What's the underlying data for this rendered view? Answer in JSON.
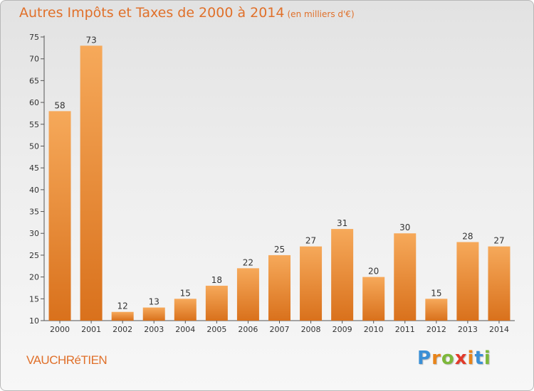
{
  "header": {
    "title": "Autres Impôts et Taxes de 2000 à 2014",
    "unit": "(en milliers d'€)"
  },
  "footer": {
    "commune": "VAUCHRéTIEN",
    "logo_letters": [
      "P",
      "r",
      "o",
      "x",
      "i",
      "t",
      "i"
    ],
    "logo_colors": [
      "#3a8fd6",
      "#e8841a",
      "#7db83a",
      "#e23a2a",
      "#e8841a",
      "#3a8fd6",
      "#7db83a"
    ]
  },
  "colors": {
    "bar_light": "#f6a95a",
    "bar_dark": "#d9711c",
    "accent": "#e0702a"
  },
  "chart_data": {
    "type": "bar",
    "title": "Autres Impôts et Taxes de 2000 à 2014",
    "subtitle": "(en milliers d'€)",
    "categories": [
      "2000",
      "2001",
      "2002",
      "2003",
      "2004",
      "2005",
      "2006",
      "2007",
      "2008",
      "2009",
      "2010",
      "2011",
      "2012",
      "2013",
      "2014"
    ],
    "values": [
      58,
      73,
      12,
      13,
      15,
      18,
      22,
      25,
      27,
      31,
      20,
      30,
      15,
      28,
      27
    ],
    "ylim": [
      10,
      75
    ],
    "yticks": [
      10,
      15,
      20,
      25,
      30,
      35,
      40,
      45,
      50,
      55,
      60,
      65,
      70,
      75
    ],
    "grid": false,
    "legend": "none"
  }
}
